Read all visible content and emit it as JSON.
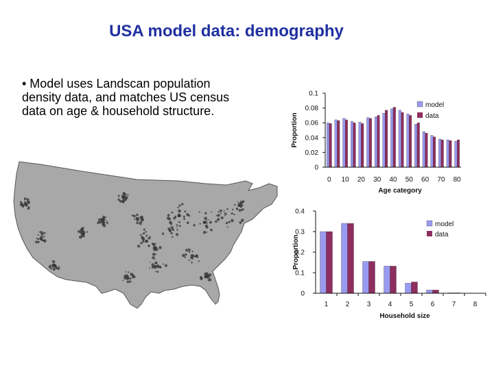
{
  "slide": {
    "title": "USA model data: demography",
    "bullet": "• Model uses Landscan population density data, and matches US census data on age & household structure."
  },
  "colors": {
    "title": "#1f2fa0",
    "model": "#9a9af0",
    "data": "#8e2e5e",
    "map_land": "#a8a8a8",
    "map_urban": "#3a3a3a"
  },
  "map": {
    "icon": "usa-population-density-map"
  },
  "chart_data": [
    {
      "type": "bar",
      "xlabel": "Age category",
      "ylabel": "Proportion",
      "ylim": [
        0,
        0.1
      ],
      "yticks": [
        "0",
        "0.02",
        "0.04",
        "0.06",
        "0.08",
        "0.1"
      ],
      "xticks": [
        "0",
        "10",
        "20",
        "30",
        "40",
        "50",
        "60",
        "70",
        "80"
      ],
      "categories": [
        0,
        5,
        10,
        15,
        20,
        25,
        30,
        35,
        40,
        45,
        50,
        55,
        60,
        65,
        70,
        75,
        80
      ],
      "legend": "right",
      "series": [
        {
          "name": "model",
          "values": [
            0.06,
            0.064,
            0.066,
            0.062,
            0.061,
            0.067,
            0.068,
            0.073,
            0.079,
            0.077,
            0.072,
            0.058,
            0.048,
            0.043,
            0.038,
            0.037,
            0.035
          ]
        },
        {
          "name": "data",
          "values": [
            0.059,
            0.063,
            0.064,
            0.06,
            0.059,
            0.066,
            0.07,
            0.077,
            0.081,
            0.074,
            0.07,
            0.06,
            0.046,
            0.041,
            0.037,
            0.036,
            0.037
          ]
        }
      ]
    },
    {
      "type": "bar",
      "xlabel": "Household size",
      "ylabel": "Proportion",
      "ylim": [
        0,
        0.4
      ],
      "yticks": [
        "0",
        "0.1",
        "0.2",
        "0.3",
        "0.4"
      ],
      "categories": [
        "1",
        "2",
        "3",
        "4",
        "5",
        "6",
        "7",
        "8"
      ],
      "legend": "right",
      "series": [
        {
          "name": "model",
          "values": [
            0.3,
            0.34,
            0.155,
            0.132,
            0.049,
            0.016,
            0.002,
            0.001
          ]
        },
        {
          "name": "data",
          "values": [
            0.3,
            0.34,
            0.155,
            0.132,
            0.055,
            0.016,
            0.002,
            0.001
          ]
        }
      ]
    }
  ]
}
